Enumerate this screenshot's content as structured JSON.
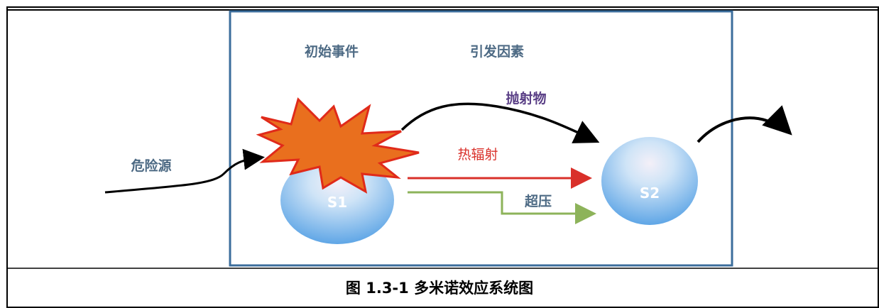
{
  "diagram": {
    "initial_event_label": "初始事件",
    "trigger_factor_label": "引发因素",
    "hazard_source_label": "危险源",
    "projectile_label": "抛射物",
    "heat_radiation_label": "热辐射",
    "overpressure_label": "超压",
    "node_s1_label": "S1",
    "node_s2_label": "S2",
    "colors": {
      "frame_border": "#3c6e9c",
      "header_text": "#4d6a84",
      "projectile_text": "#5a3f86",
      "heat_radiation": "#d9302a",
      "overpressure": "#8db35a",
      "explosion_fill": "#e96f1e",
      "explosion_stroke": "#e02a1a",
      "node_fill": "#8fc3ef"
    }
  },
  "caption": {
    "text": "图 1.3-1 多米诺效应系统图"
  }
}
